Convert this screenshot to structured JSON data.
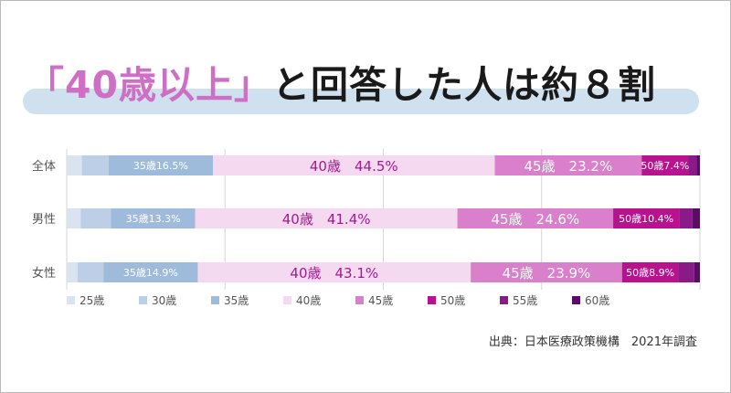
{
  "title": {
    "highlight": "「40歳以上」",
    "rest": "と回答した人は約８割"
  },
  "source": "出典：日本医療政策機構　2021年調査",
  "chart_data": {
    "type": "bar",
    "orientation": "horizontal",
    "stacked": true,
    "title": "「40歳以上」と回答した人は約８割",
    "categories": [
      "全体",
      "男性",
      "女性"
    ],
    "series": [
      {
        "name": "25歳",
        "color": "#dae4f1",
        "values": [
          2.4,
          2.2,
          1.7
        ]
      },
      {
        "name": "30歳",
        "color": "#bccfe6",
        "values": [
          4.2,
          4.8,
          4.1
        ]
      },
      {
        "name": "35歳",
        "color": "#9ebbdc",
        "values": [
          16.5,
          13.3,
          14.9
        ]
      },
      {
        "name": "40歳",
        "color": "#f5d9f0",
        "values": [
          44.5,
          41.4,
          43.1
        ]
      },
      {
        "name": "45歳",
        "color": "#d97fcb",
        "values": [
          23.2,
          24.6,
          23.9
        ]
      },
      {
        "name": "50歳",
        "color": "#b8128f",
        "values": [
          7.4,
          10.4,
          8.9
        ]
      },
      {
        "name": "55歳",
        "color": "#8a1a88",
        "values": [
          1.3,
          2.1,
          2.5
        ]
      },
      {
        "name": "60歳",
        "color": "#5a0d66",
        "values": [
          0.5,
          1.2,
          0.9
        ]
      }
    ],
    "data_labels": [
      [
        null,
        null,
        "35歳16.5%",
        "40歳　44.5%",
        "45歳　23.2%",
        "50歳7.4%",
        null,
        null
      ],
      [
        null,
        null,
        "35歳13.3%",
        "40歳　41.4%",
        "45歳　24.6%",
        "50歳10.4%",
        null,
        null
      ],
      [
        null,
        null,
        "35歳14.9%",
        "40歳　43.1%",
        "45歳　23.9%",
        "50歳8.9%",
        null,
        null
      ]
    ],
    "label_colors": [
      "#ffffff",
      "#ffffff",
      "#ffffff",
      "#a01c8e",
      "#ffffff",
      "#ffffff",
      "#ffffff",
      "#ffffff"
    ],
    "xlim": [
      0,
      100
    ],
    "grid": true,
    "legend": "bottom"
  }
}
